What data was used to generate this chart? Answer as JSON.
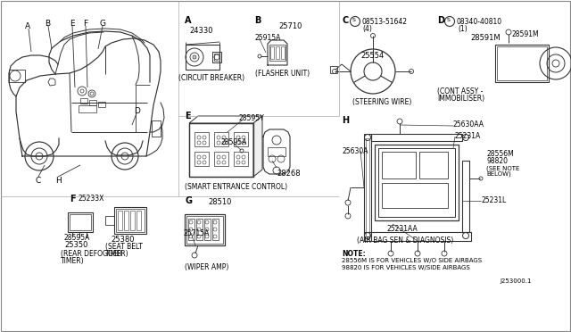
{
  "bg_color": "#ffffff",
  "line_color": "#333333",
  "fig_width": 6.4,
  "fig_height": 3.72,
  "dpi": 100,
  "border_color": "#aaaaaa",
  "sections": {
    "A_label": "A",
    "A_part": "24330",
    "A_desc": "(CIRCUIT BREAKER)",
    "B_label": "B",
    "B_part1": "25710",
    "B_part2": "25915A",
    "B_desc": "(FLASHER UNIT)",
    "C_label": "C",
    "C_bolt1": "08513-51642",
    "C_bolt1_qty": "(4)",
    "C_part": "25554",
    "C_desc": "(STEERING WIRE)",
    "D_label": "D",
    "D_bolt2": "08340-40810",
    "D_bolt2_qty": "(1)",
    "D_part": "28591M",
    "D_desc1": "(CONT ASSY -",
    "D_desc2": "IMMOBILISER)",
    "E_label": "E",
    "E_part1": "28595Y",
    "E_part2": "28595A",
    "E_part3": "28268",
    "E_desc": "(SMART ENTRANCE CONTROL)",
    "F_label": "F",
    "F_part1": "25233X",
    "F_part2": "28595A",
    "F_part3": "25350",
    "F_desc1": "(REAR DEFOGGER",
    "F_desc2": "TIMER)",
    "F_part4": "25380",
    "F_desc3": "(SEAT BELT",
    "F_desc4": "TIMER)",
    "G_label": "G",
    "G_part1": "28510",
    "G_part2": "25715A",
    "G_desc": "(WIPER AMP)",
    "H_label": "H",
    "H_part1": "25630AA",
    "H_part2": "25231A",
    "H_part3": "25630A",
    "H_part4": "28556M",
    "H_part5": "98820",
    "H_part6": "25231L",
    "H_part7": "25231AA",
    "H_desc": "(AIR BAG SEN & DIAGNOSIS)",
    "H_note1": "(SEE NOTE",
    "H_note2": "BELOW)",
    "note_label": "NOTE:",
    "note_line1": "28556M IS FOR VEHICLES W/O SIDE AIRBAGS",
    "note_line2": "98820 IS FOR VEHICLES W/SIDE AIRBAGS",
    "note_ref": "J253000.1"
  }
}
